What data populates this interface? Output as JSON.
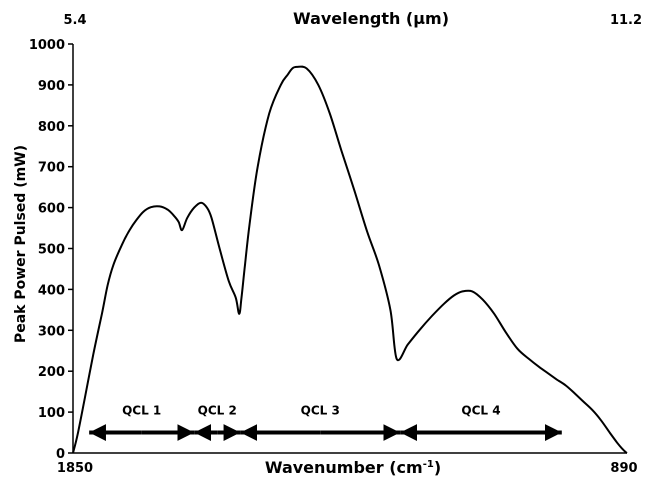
{
  "chart_data": {
    "type": "line",
    "top_axis": {
      "label": "Wavelength (μm)",
      "tick_labels": [
        "5.4",
        "11.2"
      ]
    },
    "bottom_axis": {
      "label_main": "Wavenumber (cm",
      "label_sup": "-1",
      "label_end": ")",
      "tick_labels": [
        "1850",
        "890"
      ],
      "xlim": [
        1850,
        890
      ]
    },
    "y_axis": {
      "label": "Peak Power Pulsed (mW)",
      "ylim": [
        0,
        1000
      ],
      "ticks": [
        0,
        100,
        200,
        300,
        400,
        500,
        600,
        700,
        800,
        900,
        1000
      ]
    },
    "series": [
      {
        "color": "#000000",
        "x": [
          1850,
          1842,
          1830,
          1815,
          1800,
          1790,
          1780,
          1765,
          1752,
          1740,
          1728,
          1715,
          1700,
          1686,
          1675,
          1667,
          1661,
          1652,
          1640,
          1628,
          1618,
          1610,
          1596,
          1580,
          1568,
          1562,
          1558,
          1552,
          1544,
          1530,
          1510,
          1490,
          1478,
          1470,
          1462,
          1445,
          1425,
          1405,
          1385,
          1362,
          1340,
          1320,
          1300,
          1289,
          1270,
          1250,
          1228,
          1207,
          1190,
          1175,
          1158,
          1140,
          1120,
          1100,
          1080,
          1060,
          1042,
          1027,
          1012,
          996,
          980,
          965,
          950,
          935,
          920,
          907,
          898,
          893,
          890
        ],
        "y": [
          0,
          45,
          130,
          240,
          340,
          410,
          460,
          510,
          545,
          570,
          590,
          601,
          603,
          595,
          580,
          565,
          545,
          575,
          600,
          612,
          600,
          575,
          500,
          420,
          380,
          340,
          380,
          460,
          560,
          700,
          830,
          900,
          925,
          940,
          944,
          940,
          900,
          830,
          740,
          640,
          540,
          460,
          350,
          230,
          265,
          300,
          335,
          365,
          385,
          395,
          395,
          375,
          340,
          295,
          255,
          230,
          210,
          195,
          180,
          165,
          145,
          125,
          105,
          80,
          50,
          25,
          10,
          3,
          0
        ]
      }
    ],
    "annotations": [
      {
        "label": "QCL 1",
        "x_start": 1822,
        "x_end": 1640
      },
      {
        "label": "QCL 2",
        "x_start": 1640,
        "x_end": 1560
      },
      {
        "label": "QCL 3",
        "x_start": 1560,
        "x_end": 1283
      },
      {
        "label": "QCL 4",
        "x_start": 1283,
        "x_end": 1003
      }
    ],
    "arrow_level": 50,
    "grid": false
  }
}
